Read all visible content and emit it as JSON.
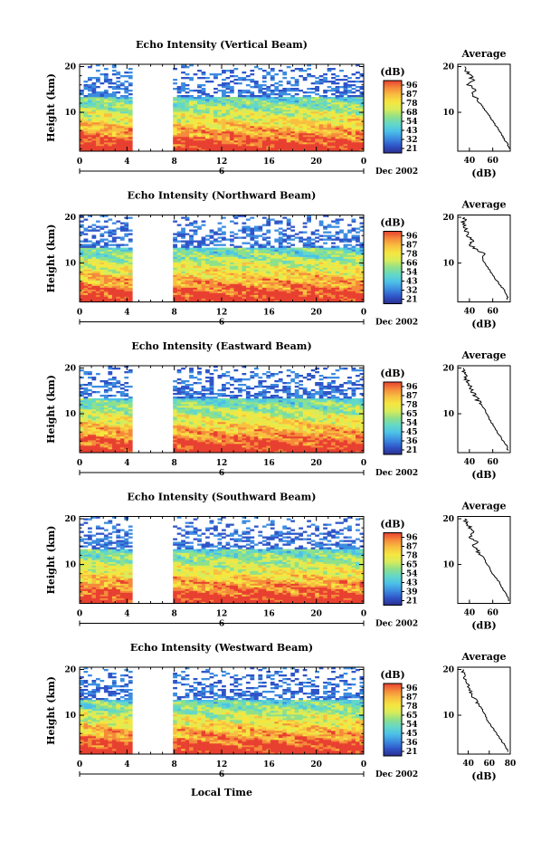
{
  "figure": {
    "x_axis_title": "Local Time",
    "date_label": "Dec 2002",
    "colorbar_unit": "(dB)",
    "colorbar_ticks": [
      [
        "96",
        "87",
        "78",
        "68",
        "54",
        "43",
        "32",
        "21"
      ],
      [
        "96",
        "87",
        "78",
        "66",
        "54",
        "43",
        "32",
        "21"
      ],
      [
        "96",
        "87",
        "78",
        "65",
        "54",
        "45",
        "36",
        "21"
      ],
      [
        "96",
        "87",
        "78",
        "65",
        "54",
        "43",
        "39",
        "21"
      ],
      [
        "96",
        "87",
        "78",
        "65",
        "54",
        "45",
        "36",
        "21"
      ]
    ],
    "colorscale": [
      "#2b2f8f",
      "#2f55c8",
      "#3c8de0",
      "#4cc0e8",
      "#63d8c8",
      "#8fe08a",
      "#d8ec5a",
      "#f5e640",
      "#f8c040",
      "#f58a3a",
      "#e84030"
    ]
  },
  "chart_data": [
    {
      "type": "heatmap",
      "title": "Echo Intensity (Vertical Beam)",
      "xlabel": "Local Time",
      "ylabel": "Height (km)",
      "x_ticks": [
        "0",
        "4",
        "8",
        "12",
        "16",
        "20",
        "0"
      ],
      "y_ticks": [
        "10",
        "20"
      ],
      "xlim": [
        0,
        24
      ],
      "ylim": [
        1.5,
        20.5
      ],
      "date_tick": "6",
      "data_gap_hours": [
        4.6,
        7.6
      ],
      "profile": {
        "type": "line",
        "title": "Average",
        "xlabel": "(dB)",
        "x_ticks": [
          "40",
          "60"
        ],
        "y_ticks": [
          "10",
          "20"
        ],
        "xlim": [
          30,
          75
        ],
        "heights_km": [
          2,
          3,
          4,
          5,
          6,
          7,
          8,
          9,
          10,
          11,
          12,
          13,
          14,
          15,
          16,
          17,
          18,
          19,
          20
        ],
        "values_db": [
          74,
          73,
          70,
          68,
          66,
          63,
          60,
          58,
          55,
          52,
          49,
          47,
          42,
          45,
          39,
          43,
          41,
          38,
          36
        ]
      }
    },
    {
      "type": "heatmap",
      "title": "Echo Intensity (Northward Beam)",
      "xlabel": "Local Time",
      "ylabel": "Height (km)",
      "x_ticks": [
        "0",
        "4",
        "8",
        "12",
        "16",
        "20",
        "0"
      ],
      "y_ticks": [
        "10",
        "20"
      ],
      "xlim": [
        0,
        24
      ],
      "ylim": [
        1.5,
        20.5
      ],
      "date_tick": "6",
      "data_gap_hours": [
        4.6,
        7.6
      ],
      "profile": {
        "type": "line",
        "title": "Average",
        "xlabel": "(dB)",
        "x_ticks": [
          "40",
          "60"
        ],
        "y_ticks": [
          "10",
          "20"
        ],
        "xlim": [
          30,
          75
        ],
        "heights_km": [
          2,
          3,
          4,
          5,
          6,
          7,
          8,
          9,
          10,
          11,
          12,
          13,
          14,
          15,
          16,
          17,
          18,
          19,
          20
        ],
        "values_db": [
          73,
          72,
          70,
          67,
          64,
          61,
          58,
          56,
          53,
          51,
          53,
          45,
          41,
          42,
          38,
          37,
          36,
          35,
          36
        ]
      }
    },
    {
      "type": "heatmap",
      "title": "Echo Intensity (Eastward Beam)",
      "xlabel": "Local Time",
      "ylabel": "Height (km)",
      "x_ticks": [
        "0",
        "4",
        "8",
        "12",
        "16",
        "20",
        "0"
      ],
      "y_ticks": [
        "10",
        "20"
      ],
      "xlim": [
        0,
        24
      ],
      "ylim": [
        1.5,
        20.5
      ],
      "date_tick": "6",
      "data_gap_hours": [
        4.6,
        7.6
      ],
      "profile": {
        "type": "line",
        "title": "Average",
        "xlabel": "(dB)",
        "x_ticks": [
          "40",
          "60"
        ],
        "y_ticks": [
          "10",
          "20"
        ],
        "xlim": [
          30,
          75
        ],
        "heights_km": [
          2,
          3,
          4,
          5,
          6,
          7,
          8,
          9,
          10,
          11,
          12,
          13,
          14,
          15,
          16,
          17,
          18,
          19,
          20
        ],
        "values_db": [
          73,
          72,
          69,
          67,
          64,
          62,
          59,
          57,
          55,
          53,
          50,
          47,
          45,
          42,
          40,
          38,
          37,
          36,
          35
        ]
      }
    },
    {
      "type": "heatmap",
      "title": "Echo Intensity (Southward Beam)",
      "xlabel": "Local Time",
      "ylabel": "Height (km)",
      "x_ticks": [
        "0",
        "4",
        "8",
        "12",
        "16",
        "20",
        "0"
      ],
      "y_ticks": [
        "10",
        "20"
      ],
      "xlim": [
        0,
        24
      ],
      "ylim": [
        1.5,
        20.5
      ],
      "date_tick": "6",
      "data_gap_hours": [
        4.6,
        7.6
      ],
      "profile": {
        "type": "line",
        "title": "Average",
        "xlabel": "(dB)",
        "x_ticks": [
          "40",
          "60"
        ],
        "y_ticks": [
          "10",
          "20"
        ],
        "xlim": [
          30,
          75
        ],
        "heights_km": [
          2,
          3,
          4,
          5,
          6,
          7,
          8,
          9,
          10,
          11,
          12,
          13,
          14,
          15,
          16,
          17,
          18,
          19,
          20
        ],
        "values_db": [
          74,
          73,
          70,
          68,
          66,
          63,
          60,
          58,
          55,
          53,
          51,
          47,
          43,
          46,
          40,
          44,
          41,
          38,
          36
        ]
      }
    },
    {
      "type": "heatmap",
      "title": "Echo Intensity (Westward Beam)",
      "xlabel": "Local Time",
      "ylabel": "Height (km)",
      "x_ticks": [
        "0",
        "4",
        "8",
        "12",
        "16",
        "20",
        "0"
      ],
      "y_ticks": [
        "10",
        "20"
      ],
      "xlim": [
        0,
        24
      ],
      "ylim": [
        1.5,
        20.5
      ],
      "date_tick": "6",
      "data_gap_hours": [
        4.6,
        7.6
      ],
      "profile": {
        "type": "line",
        "title": "Average",
        "xlabel": "(dB)",
        "x_ticks": [
          "40",
          "60",
          "80"
        ],
        "y_ticks": [
          "10",
          "20"
        ],
        "xlim": [
          30,
          80
        ],
        "heights_km": [
          2,
          3,
          4,
          5,
          6,
          7,
          8,
          9,
          10,
          11,
          12,
          13,
          14,
          15,
          16,
          17,
          18,
          19,
          20
        ],
        "values_db": [
          78,
          76,
          73,
          70,
          67,
          64,
          61,
          58,
          56,
          54,
          51,
          48,
          45,
          43,
          41,
          39,
          37,
          36,
          35
        ]
      }
    }
  ]
}
